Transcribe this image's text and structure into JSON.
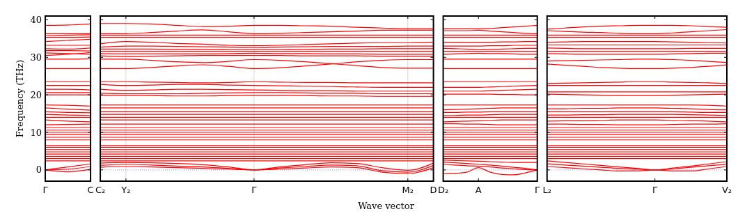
{
  "chart_data": [
    {
      "type": "line",
      "ylabel": "Frequency (THz)",
      "color": "#ff0000",
      "line_style": "solid",
      "marker": "none",
      "categories": [
        "Γ",
        null,
        "C"
      ],
      "ylim": [
        -3,
        41
      ],
      "yticks": [
        0,
        10,
        20,
        30,
        40
      ],
      "ref_lines": [
        {
          "axis": "y",
          "value": 0,
          "color": "#6666ff",
          "line_style": "dotted"
        }
      ],
      "series": [
        {
          "values": [
            38.5,
            38.6,
            38.9
          ]
        },
        {
          "values": [
            36.3,
            36.3,
            36.3
          ]
        },
        {
          "values": [
            35.8,
            35.9,
            36.0
          ]
        },
        {
          "values": [
            35.3,
            35.3,
            35.4
          ]
        },
        {
          "values": [
            34.2,
            34.5,
            34.8
          ]
        },
        {
          "values": [
            33.2,
            33.2,
            33.2
          ]
        },
        {
          "values": [
            32.3,
            32.2,
            32.5
          ]
        },
        {
          "values": [
            31.8,
            31.8,
            31.7
          ]
        },
        {
          "values": [
            31.2,
            31.0,
            30.8
          ]
        },
        {
          "values": [
            30.5,
            30.8,
            31.3
          ]
        },
        {
          "values": [
            29.5,
            29.5,
            29.6
          ]
        },
        {
          "values": [
            27.0,
            27.0,
            27.0
          ]
        },
        {
          "values": [
            23.5,
            23.5,
            23.5
          ]
        },
        {
          "values": [
            22.5,
            22.5,
            22.5
          ]
        },
        {
          "values": [
            21.5,
            21.5,
            21.3
          ]
        },
        {
          "values": [
            20.6,
            20.6,
            20.6
          ]
        },
        {
          "values": [
            20.0,
            20.0,
            20.0
          ]
        },
        {
          "values": [
            17.3,
            17.2,
            17.0
          ]
        },
        {
          "values": [
            16.5,
            16.2,
            15.9
          ]
        },
        {
          "values": [
            15.5,
            15.3,
            15.2
          ]
        },
        {
          "values": [
            14.8,
            14.6,
            14.5
          ]
        },
        {
          "values": [
            14.0,
            14.0,
            14.0
          ]
        },
        {
          "values": [
            13.3,
            13.0,
            12.8
          ]
        },
        {
          "values": [
            12.0,
            12.1,
            12.2
          ]
        },
        {
          "values": [
            11.3,
            11.3,
            11.3
          ]
        },
        {
          "values": [
            10.6,
            10.6,
            10.6
          ]
        },
        {
          "values": [
            10.0,
            10.0,
            10.0
          ]
        },
        {
          "values": [
            9.4,
            9.4,
            9.4
          ]
        },
        {
          "values": [
            8.7,
            8.7,
            8.7
          ]
        },
        {
          "values": [
            8.0,
            8.0,
            8.0
          ]
        },
        {
          "values": [
            6.5,
            6.5,
            6.5
          ]
        },
        {
          "values": [
            6.0,
            6.0,
            6.0
          ]
        },
        {
          "values": [
            5.4,
            5.4,
            5.4
          ]
        },
        {
          "values": [
            4.8,
            4.8,
            4.8
          ]
        },
        {
          "values": [
            4.2,
            4.2,
            4.2
          ]
        },
        {
          "values": [
            3.6,
            3.6,
            3.6
          ]
        },
        {
          "values": [
            3.0,
            3.0,
            3.0
          ]
        },
        {
          "values": [
            2.4,
            2.4,
            2.4
          ]
        },
        {
          "values": [
            0,
            0.8,
            1.6
          ]
        },
        {
          "values": [
            0,
            0.2,
            0.9
          ]
        },
        {
          "values": [
            0,
            -0.5,
            0.2
          ]
        }
      ]
    },
    {
      "type": "line",
      "xlabel": "Wave vector",
      "color": "#ff0000",
      "line_style": "solid",
      "marker": "none",
      "tick_labels": "x",
      "grid": "x",
      "categories": [
        "C₂",
        "Y₂",
        null,
        null,
        null,
        null,
        "Γ",
        null,
        null,
        null,
        null,
        null,
        "M₂",
        "D"
      ],
      "ylim": [
        -3,
        41
      ],
      "yticks": [
        0,
        10,
        20,
        30,
        40
      ],
      "ref_lines": [
        {
          "axis": "y",
          "value": 0,
          "color": "#6666ff",
          "line_style": "dotted"
        }
      ],
      "series": [
        {
          "values": [
            39.0,
            39.0,
            38.9,
            38.5,
            38.2,
            38.3,
            38.5,
            38.5,
            38.4,
            38.3,
            38.0,
            37.8,
            37.6,
            37.6
          ]
        },
        {
          "values": [
            36.3,
            36.3,
            36.6,
            37.0,
            37.3,
            36.8,
            36.3,
            36.4,
            36.6,
            36.8,
            37.0,
            37.2,
            37.2,
            37.2
          ]
        },
        {
          "values": [
            35.9,
            35.9,
            35.9,
            35.9,
            35.9,
            35.9,
            35.9,
            35.9,
            35.9,
            35.9,
            35.9,
            35.9,
            35.9,
            35.9
          ]
        },
        {
          "values": [
            35.3,
            35.3,
            35.3,
            35.3,
            35.3,
            35.3,
            35.3,
            35.3,
            35.3,
            35.3,
            35.3,
            35.3,
            35.3,
            35.3
          ]
        },
        {
          "values": [
            33.6,
            34.2,
            34.0,
            33.7,
            33.5,
            33.2,
            33.1,
            33.2,
            33.4,
            33.6,
            33.8,
            33.9,
            33.9,
            34.0
          ]
        },
        {
          "values": [
            32.7,
            33.0,
            33.0,
            32.9,
            32.8,
            32.7,
            32.6,
            32.7,
            32.8,
            32.9,
            32.9,
            32.9,
            33.0,
            33.0
          ]
        },
        {
          "values": [
            32.2,
            32.2,
            32.2,
            32.1,
            32.1,
            32.0,
            32.0,
            32.0,
            32.1,
            32.2,
            32.2,
            32.3,
            32.3,
            32.3
          ]
        },
        {
          "values": [
            31.6,
            31.6,
            31.6,
            31.6,
            31.6,
            31.6,
            31.6,
            31.6,
            31.6,
            31.6,
            31.6,
            31.6,
            31.6,
            31.6
          ]
        },
        {
          "values": [
            31.0,
            30.9,
            30.9,
            30.9,
            30.9,
            31.0,
            31.1,
            31.0,
            31.0,
            30.9,
            30.9,
            30.8,
            30.8,
            30.8
          ]
        },
        {
          "values": [
            30.4,
            30.2,
            30.3,
            30.4,
            30.5,
            30.5,
            30.5,
            30.5,
            30.4,
            30.4,
            30.4,
            30.3,
            30.3,
            30.3
          ]
        },
        {
          "values": [
            29.5,
            29.5,
            29.2,
            28.8,
            28.6,
            28.9,
            29.4,
            29.2,
            28.8,
            28.3,
            27.8,
            27.3,
            27.1,
            27.1
          ]
        },
        {
          "values": [
            27.0,
            27.0,
            27.3,
            27.7,
            28.0,
            27.6,
            27.0,
            27.2,
            27.7,
            28.2,
            28.8,
            29.2,
            29.4,
            29.4
          ]
        },
        {
          "values": [
            23.5,
            23.5,
            23.4,
            23.3,
            23.2,
            23.3,
            23.5,
            23.4,
            23.3,
            23.3,
            23.2,
            23.2,
            23.2,
            23.2
          ]
        },
        {
          "values": [
            22.8,
            22.5,
            22.6,
            22.8,
            22.8,
            22.6,
            22.5,
            22.4,
            22.3,
            22.2,
            22.1,
            22.0,
            22.0,
            22.0
          ]
        },
        {
          "values": [
            21.5,
            21.2,
            21.3,
            21.5,
            21.5,
            21.4,
            21.3,
            21.2,
            21.1,
            21.1,
            21.0,
            21.0,
            21.0,
            21.0
          ]
        },
        {
          "values": [
            20.4,
            20.3,
            20.3,
            20.3,
            20.4,
            20.5,
            20.6,
            20.6,
            20.5,
            20.4,
            20.4,
            20.3,
            20.3,
            20.3
          ]
        },
        {
          "values": [
            19.9,
            19.9,
            19.8,
            19.7,
            19.7,
            19.8,
            19.9,
            19.9,
            19.8,
            19.7,
            19.7,
            19.6,
            19.6,
            19.6
          ]
        },
        {
          "values": [
            17.3,
            17.3,
            17.3,
            17.3,
            17.3,
            17.3,
            17.3,
            17.3,
            17.3,
            17.3,
            17.3,
            17.3,
            17.3,
            17.3
          ]
        },
        {
          "values": [
            16.5,
            16.5,
            16.5,
            16.5,
            16.5,
            16.5,
            16.5,
            16.5,
            16.5,
            16.5,
            16.5,
            16.5,
            16.5,
            16.5
          ]
        },
        {
          "values": [
            15.5,
            15.5,
            15.5,
            15.5,
            15.5,
            15.5,
            15.5,
            15.5,
            15.5,
            15.5,
            15.5,
            15.5,
            15.5,
            15.5
          ]
        },
        {
          "values": [
            14.8,
            14.8,
            14.8,
            14.8,
            14.8,
            14.8,
            14.8,
            14.8,
            14.8,
            14.8,
            14.8,
            14.8,
            14.8,
            14.8
          ]
        },
        {
          "values": [
            14.0,
            14.0,
            14.0,
            14.0,
            14.0,
            14.0,
            14.0,
            14.0,
            14.0,
            14.0,
            14.0,
            14.0,
            14.0,
            14.0
          ]
        },
        {
          "values": [
            13.3,
            13.3,
            13.3,
            13.3,
            13.3,
            13.3,
            13.3,
            13.3,
            13.3,
            13.3,
            13.3,
            13.3,
            13.3,
            13.3
          ]
        },
        {
          "values": [
            12.2,
            12.2,
            12.2,
            12.2,
            12.2,
            12.2,
            12.2,
            12.2,
            12.2,
            12.2,
            12.2,
            12.2,
            12.2,
            12.2
          ]
        },
        {
          "values": [
            11.3,
            11.3,
            11.3,
            11.3,
            11.3,
            11.3,
            11.3,
            11.3,
            11.3,
            11.3,
            11.3,
            11.3,
            11.3,
            11.3
          ]
        },
        {
          "values": [
            10.6,
            10.6,
            10.6,
            10.6,
            10.6,
            10.6,
            10.6,
            10.6,
            10.6,
            10.6,
            10.6,
            10.6,
            10.6,
            10.6
          ]
        },
        {
          "values": [
            10.0,
            10.0,
            10.0,
            10.0,
            10.0,
            10.0,
            10.0,
            10.0,
            10.0,
            10.0,
            10.0,
            10.0,
            10.0,
            10.0
          ]
        },
        {
          "values": [
            9.4,
            9.4,
            9.4,
            9.4,
            9.4,
            9.4,
            9.4,
            9.4,
            9.4,
            9.4,
            9.4,
            9.4,
            9.4,
            9.4
          ]
        },
        {
          "values": [
            8.7,
            8.7,
            8.7,
            8.7,
            8.7,
            8.7,
            8.7,
            8.7,
            8.7,
            8.7,
            8.7,
            8.7,
            8.7,
            8.7
          ]
        },
        {
          "values": [
            8.0,
            8.0,
            8.0,
            8.0,
            8.0,
            8.0,
            8.0,
            8.0,
            8.0,
            8.0,
            8.0,
            8.0,
            8.0,
            8.0
          ]
        },
        {
          "values": [
            6.5,
            6.5,
            6.5,
            6.5,
            6.5,
            6.5,
            6.5,
            6.5,
            6.5,
            6.5,
            6.5,
            6.5,
            6.5,
            6.5
          ]
        },
        {
          "values": [
            6.0,
            6.0,
            6.0,
            6.0,
            6.0,
            6.0,
            6.0,
            6.0,
            6.0,
            6.0,
            6.0,
            6.0,
            6.0,
            6.0
          ]
        },
        {
          "values": [
            5.4,
            5.4,
            5.4,
            5.4,
            5.4,
            5.4,
            5.4,
            5.4,
            5.4,
            5.4,
            5.4,
            5.4,
            5.4,
            5.4
          ]
        },
        {
          "values": [
            4.8,
            4.8,
            4.8,
            4.8,
            4.8,
            4.8,
            4.8,
            4.8,
            4.8,
            4.8,
            4.8,
            4.8,
            4.8,
            4.8
          ]
        },
        {
          "values": [
            4.2,
            4.2,
            4.2,
            4.2,
            4.2,
            4.2,
            4.2,
            4.2,
            4.2,
            4.2,
            4.2,
            4.2,
            4.2,
            4.2
          ]
        },
        {
          "values": [
            3.6,
            3.6,
            3.6,
            3.6,
            3.6,
            3.6,
            3.6,
            3.6,
            3.6,
            3.6,
            3.6,
            3.6,
            3.6,
            3.6
          ]
        },
        {
          "values": [
            3.0,
            3.0,
            3.0,
            3.0,
            3.0,
            3.0,
            3.0,
            3.0,
            3.0,
            3.0,
            3.0,
            3.0,
            3.0,
            3.0
          ]
        },
        {
          "values": [
            2.4,
            2.4,
            2.4,
            2.4,
            2.4,
            2.4,
            2.4,
            2.4,
            2.4,
            2.4,
            2.4,
            2.4,
            2.4,
            2.4
          ]
        },
        {
          "values": [
            1.8,
            2.0,
            1.9,
            1.7,
            1.4,
            0.8,
            0,
            0.8,
            1.4,
            1.9,
            1.7,
            0.6,
            -0.1,
            1.8
          ]
        },
        {
          "values": [
            1.2,
            1.5,
            1.3,
            1.0,
            0.8,
            0.4,
            0,
            0.5,
            0.9,
            1.3,
            1.1,
            -0.2,
            -0.6,
            1.2
          ]
        },
        {
          "values": [
            0.7,
            0.9,
            0.8,
            0.6,
            0.4,
            0.2,
            0,
            0.2,
            0.5,
            0.8,
            0.6,
            -0.6,
            -1.0,
            0.6
          ]
        }
      ]
    },
    {
      "type": "line",
      "color": "#ff0000",
      "line_style": "solid",
      "marker": "none",
      "tick_labels": "x",
      "categories": [
        "D₂",
        null,
        null,
        "A",
        null,
        null,
        null,
        null,
        "Γ"
      ],
      "ylim": [
        -3,
        41
      ],
      "yticks": [
        0,
        10,
        20,
        30,
        40
      ],
      "ref_lines": [
        {
          "axis": "y",
          "value": 0,
          "color": "#6666ff",
          "line_style": "dotted"
        }
      ],
      "series": [
        {
          "values": [
            37.6,
            37.6,
            37.6,
            37.6,
            37.7,
            37.9,
            38.1,
            38.3,
            38.5
          ]
        },
        {
          "values": [
            37.1,
            37.1,
            37.1,
            37.2,
            37.0,
            36.8,
            36.6,
            36.4,
            36.3
          ]
        },
        {
          "values": [
            35.9,
            35.9,
            35.9,
            35.9,
            35.9,
            35.9,
            35.9,
            35.9,
            35.9
          ]
        },
        {
          "values": [
            35.3,
            35.3,
            35.3,
            35.3,
            35.3,
            35.3,
            35.3,
            35.3,
            35.3
          ]
        },
        {
          "values": [
            34.0,
            34.0,
            34.0,
            34.0,
            34.0,
            34.1,
            34.1,
            34.2,
            34.2
          ]
        },
        {
          "values": [
            33.0,
            33.0,
            33.0,
            33.0,
            33.1,
            33.1,
            33.2,
            33.2,
            33.2
          ]
        },
        {
          "values": [
            32.4,
            32.3,
            32.2,
            32.0,
            32.1,
            32.2,
            32.3,
            32.4,
            32.4
          ]
        },
        {
          "values": [
            31.6,
            31.6,
            31.6,
            31.6,
            31.6,
            31.6,
            31.6,
            31.6,
            31.6
          ]
        },
        {
          "values": [
            30.8,
            30.9,
            31.0,
            31.1,
            31.0,
            31.0,
            30.9,
            30.8,
            30.8
          ]
        },
        {
          "values": [
            29.5,
            29.5,
            29.5,
            29.5,
            29.5,
            29.5,
            29.5,
            29.5,
            29.5
          ]
        },
        {
          "values": [
            27.0,
            27.0,
            27.0,
            27.0,
            27.0,
            27.0,
            27.0,
            27.0,
            27.0
          ]
        },
        {
          "values": [
            23.5,
            23.5,
            23.5,
            23.5,
            23.5,
            23.5,
            23.5,
            23.5,
            23.5
          ]
        },
        {
          "values": [
            22.0,
            22.0,
            22.0,
            22.0,
            22.1,
            22.2,
            22.3,
            22.4,
            22.5
          ]
        },
        {
          "values": [
            21.0,
            21.0,
            21.0,
            21.0,
            21.1,
            21.2,
            21.3,
            21.4,
            21.5
          ]
        },
        {
          "values": [
            20.2,
            20.2,
            20.2,
            20.2,
            20.2,
            20.1,
            20.1,
            20.0,
            20.0
          ]
        },
        {
          "values": [
            17.3,
            17.3,
            17.3,
            17.3,
            17.3,
            17.3,
            17.3,
            17.3,
            17.3
          ]
        },
        {
          "values": [
            16.0,
            16.1,
            16.2,
            16.3,
            16.4,
            16.5,
            16.5,
            16.5,
            16.5
          ]
        },
        {
          "values": [
            15.3,
            15.3,
            15.4,
            15.4,
            15.5,
            15.5,
            15.5,
            15.5,
            15.5
          ]
        },
        {
          "values": [
            14.5,
            14.5,
            14.6,
            14.6,
            14.7,
            14.8,
            14.8,
            14.8,
            14.8
          ]
        },
        {
          "values": [
            14.0,
            14.0,
            14.0,
            14.0,
            14.0,
            14.0,
            14.0,
            14.0,
            14.0
          ]
        },
        {
          "values": [
            12.8,
            12.9,
            13.0,
            13.1,
            13.2,
            13.3,
            13.3,
            13.3,
            13.3
          ]
        },
        {
          "values": [
            12.3,
            12.3,
            12.2,
            12.2,
            12.1,
            12.0,
            12.0,
            12.0,
            12.0
          ]
        },
        {
          "values": [
            11.3,
            11.3,
            11.3,
            11.3,
            11.3,
            11.3,
            11.3,
            11.3,
            11.3
          ]
        },
        {
          "values": [
            10.6,
            10.6,
            10.6,
            10.6,
            10.6,
            10.6,
            10.6,
            10.6,
            10.6
          ]
        },
        {
          "values": [
            10.0,
            10.0,
            10.0,
            10.0,
            10.0,
            10.0,
            10.0,
            10.0,
            10.0
          ]
        },
        {
          "values": [
            9.4,
            9.4,
            9.4,
            9.4,
            9.4,
            9.4,
            9.4,
            9.4,
            9.4
          ]
        },
        {
          "values": [
            8.7,
            8.7,
            8.7,
            8.7,
            8.7,
            8.7,
            8.7,
            8.7,
            8.7
          ]
        },
        {
          "values": [
            8.0,
            8.0,
            8.0,
            8.0,
            8.0,
            8.0,
            8.0,
            8.0,
            8.0
          ]
        },
        {
          "values": [
            6.5,
            6.5,
            6.5,
            6.5,
            6.5,
            6.5,
            6.5,
            6.5,
            6.5
          ]
        },
        {
          "values": [
            6.0,
            6.0,
            6.0,
            6.0,
            6.0,
            6.0,
            6.0,
            6.0,
            6.0
          ]
        },
        {
          "values": [
            5.4,
            5.4,
            5.4,
            5.4,
            5.4,
            5.4,
            5.4,
            5.4,
            5.4
          ]
        },
        {
          "values": [
            4.8,
            4.8,
            4.8,
            4.8,
            4.8,
            4.8,
            4.8,
            4.8,
            4.8
          ]
        },
        {
          "values": [
            4.2,
            4.2,
            4.2,
            4.2,
            4.2,
            4.2,
            4.2,
            4.2,
            4.2
          ]
        },
        {
          "values": [
            3.6,
            3.6,
            3.6,
            3.6,
            3.6,
            3.6,
            3.6,
            3.6,
            3.6
          ]
        },
        {
          "values": [
            3.0,
            3.0,
            3.0,
            3.0,
            3.0,
            3.0,
            3.0,
            3.0,
            3.0
          ]
        },
        {
          "values": [
            2.6,
            2.5,
            2.4,
            2.3,
            2.2,
            2.1,
            2.0,
            2.0,
            2.0
          ]
        },
        {
          "values": [
            1.5,
            1.3,
            1.1,
            1.0,
            0.8,
            0.5,
            0.3,
            0.1,
            0
          ]
        },
        {
          "values": [
            -1.0,
            -0.9,
            -0.6,
            0.6,
            -0.6,
            -1.2,
            -1.3,
            -0.8,
            0
          ]
        },
        {
          "values": [
            2.1,
            1.9,
            1.7,
            1.5,
            1.3,
            1.0,
            0.7,
            0.4,
            0
          ]
        }
      ]
    },
    {
      "type": "line",
      "color": "#ff0000",
      "line_style": "solid",
      "marker": "none",
      "tick_labels": "x",
      "categories": [
        "L₂",
        null,
        null,
        null,
        null,
        null,
        "Γ",
        null,
        null,
        null,
        "V₂"
      ],
      "ylim": [
        -3,
        41
      ],
      "yticks": [
        0,
        10,
        20,
        30,
        40
      ],
      "ref_lines": [
        {
          "axis": "y",
          "value": 0,
          "color": "#6666ff",
          "line_style": "dotted"
        }
      ],
      "series": [
        {
          "values": [
            37.5,
            37.8,
            38.1,
            38.3,
            38.4,
            38.5,
            38.5,
            38.5,
            38.4,
            38.2,
            38.0
          ]
        },
        {
          "values": [
            37.1,
            36.9,
            36.7,
            36.6,
            36.4,
            36.3,
            36.3,
            36.5,
            36.8,
            37.1,
            37.4
          ]
        },
        {
          "values": [
            35.9,
            35.9,
            35.9,
            35.9,
            35.9,
            35.9,
            35.9,
            35.9,
            35.9,
            35.9,
            35.9
          ]
        },
        {
          "values": [
            35.3,
            35.3,
            35.3,
            35.3,
            35.3,
            35.3,
            35.3,
            35.3,
            35.3,
            35.3,
            35.3
          ]
        },
        {
          "values": [
            34.0,
            34.1,
            34.2,
            34.2,
            34.2,
            34.2,
            34.2,
            34.1,
            34.0,
            33.9,
            33.8
          ]
        },
        {
          "values": [
            33.3,
            33.3,
            33.3,
            33.3,
            33.3,
            33.3,
            33.3,
            33.3,
            33.3,
            33.3,
            33.3
          ]
        },
        {
          "values": [
            32.5,
            32.4,
            32.3,
            32.3,
            32.3,
            32.3,
            32.3,
            32.3,
            32.4,
            32.4,
            32.4
          ]
        },
        {
          "values": [
            31.6,
            31.6,
            31.6,
            31.6,
            31.6,
            31.6,
            31.6,
            31.6,
            31.6,
            31.6,
            31.6
          ]
        },
        {
          "values": [
            31.0,
            30.9,
            30.8,
            30.8,
            30.8,
            30.8,
            30.8,
            30.9,
            31.0,
            31.1,
            31.1
          ]
        },
        {
          "values": [
            29.0,
            29.1,
            29.2,
            29.3,
            29.4,
            29.5,
            29.5,
            29.4,
            29.2,
            28.9,
            28.6
          ]
        },
        {
          "values": [
            28.2,
            27.9,
            27.6,
            27.3,
            27.1,
            27.0,
            27.0,
            27.1,
            27.3,
            27.6,
            28.0
          ]
        },
        {
          "values": [
            23.0,
            23.1,
            23.2,
            23.3,
            23.4,
            23.5,
            23.5,
            23.4,
            23.3,
            23.2,
            23.0
          ]
        },
        {
          "values": [
            22.5,
            22.5,
            22.5,
            22.5,
            22.5,
            22.5,
            22.5,
            22.5,
            22.5,
            22.5,
            22.5
          ]
        },
        {
          "values": [
            20.8,
            20.8,
            20.8,
            20.8,
            20.8,
            20.8,
            20.8,
            20.8,
            20.8,
            20.8,
            20.8
          ]
        },
        {
          "values": [
            20.2,
            20.1,
            20.0,
            19.9,
            19.8,
            19.8,
            19.8,
            19.9,
            20.0,
            20.1,
            20.2
          ]
        },
        {
          "values": [
            17.3,
            17.3,
            17.3,
            17.3,
            17.3,
            17.3,
            17.3,
            17.3,
            17.3,
            17.2,
            17.0
          ]
        },
        {
          "values": [
            16.3,
            16.3,
            16.4,
            16.4,
            16.5,
            16.5,
            16.5,
            16.4,
            16.3,
            16.1,
            16.0
          ]
        },
        {
          "values": [
            15.5,
            15.5,
            15.5,
            15.5,
            15.5,
            15.5,
            15.5,
            15.5,
            15.4,
            15.3,
            15.3
          ]
        },
        {
          "values": [
            14.6,
            14.6,
            14.7,
            14.7,
            14.8,
            14.8,
            14.8,
            14.8,
            14.7,
            14.6,
            14.5
          ]
        },
        {
          "values": [
            14.0,
            14.0,
            14.0,
            14.0,
            14.0,
            14.0,
            14.0,
            14.0,
            14.0,
            14.0,
            14.0
          ]
        },
        {
          "values": [
            13.0,
            13.1,
            13.1,
            13.2,
            13.3,
            13.3,
            13.3,
            13.2,
            13.1,
            13.0,
            12.8
          ]
        },
        {
          "values": [
            12.2,
            12.2,
            12.1,
            12.1,
            12.0,
            12.0,
            12.0,
            12.1,
            12.2,
            12.2,
            12.3
          ]
        },
        {
          "values": [
            11.3,
            11.3,
            11.3,
            11.3,
            11.3,
            11.3,
            11.3,
            11.3,
            11.3,
            11.3,
            11.3
          ]
        },
        {
          "values": [
            10.6,
            10.6,
            10.6,
            10.6,
            10.6,
            10.6,
            10.6,
            10.6,
            10.6,
            10.6,
            10.6
          ]
        },
        {
          "values": [
            10.0,
            10.0,
            10.0,
            10.0,
            10.0,
            10.0,
            10.0,
            10.0,
            10.0,
            10.0,
            10.0
          ]
        },
        {
          "values": [
            9.4,
            9.4,
            9.4,
            9.4,
            9.4,
            9.4,
            9.4,
            9.4,
            9.4,
            9.4,
            9.4
          ]
        },
        {
          "values": [
            8.7,
            8.7,
            8.7,
            8.7,
            8.7,
            8.7,
            8.7,
            8.7,
            8.7,
            8.7,
            8.7
          ]
        },
        {
          "values": [
            8.0,
            8.0,
            8.0,
            8.0,
            8.0,
            8.0,
            8.0,
            8.0,
            8.0,
            8.0,
            8.0
          ]
        },
        {
          "values": [
            6.5,
            6.5,
            6.5,
            6.5,
            6.5,
            6.5,
            6.5,
            6.5,
            6.5,
            6.5,
            6.5
          ]
        },
        {
          "values": [
            6.0,
            6.0,
            6.0,
            6.0,
            6.0,
            6.0,
            6.0,
            6.0,
            6.0,
            6.0,
            6.0
          ]
        },
        {
          "values": [
            5.4,
            5.4,
            5.4,
            5.4,
            5.4,
            5.4,
            5.4,
            5.4,
            5.4,
            5.4,
            5.4
          ]
        },
        {
          "values": [
            4.8,
            4.8,
            4.8,
            4.8,
            4.8,
            4.8,
            4.8,
            4.8,
            4.8,
            4.8,
            4.8
          ]
        },
        {
          "values": [
            4.2,
            4.2,
            4.2,
            4.2,
            4.2,
            4.2,
            4.2,
            4.2,
            4.2,
            4.2,
            4.2
          ]
        },
        {
          "values": [
            3.6,
            3.6,
            3.6,
            3.6,
            3.6,
            3.6,
            3.6,
            3.6,
            3.6,
            3.6,
            3.6
          ]
        },
        {
          "values": [
            3.0,
            3.0,
            3.0,
            3.0,
            3.0,
            3.0,
            3.0,
            3.0,
            3.0,
            3.0,
            3.0
          ]
        },
        {
          "values": [
            2.4,
            2.0,
            1.6,
            1.2,
            0.8,
            0.4,
            0,
            0.5,
            1.0,
            1.6,
            2.2
          ]
        },
        {
          "values": [
            1.6,
            1.3,
            1.0,
            0.7,
            0.4,
            0.2,
            0,
            0.3,
            0.7,
            1.1,
            1.5
          ]
        },
        {
          "values": [
            0.9,
            0.6,
            0.3,
            0,
            -0.3,
            -0.3,
            0,
            -0.3,
            -0.3,
            0.3,
            0.9
          ]
        }
      ]
    }
  ]
}
